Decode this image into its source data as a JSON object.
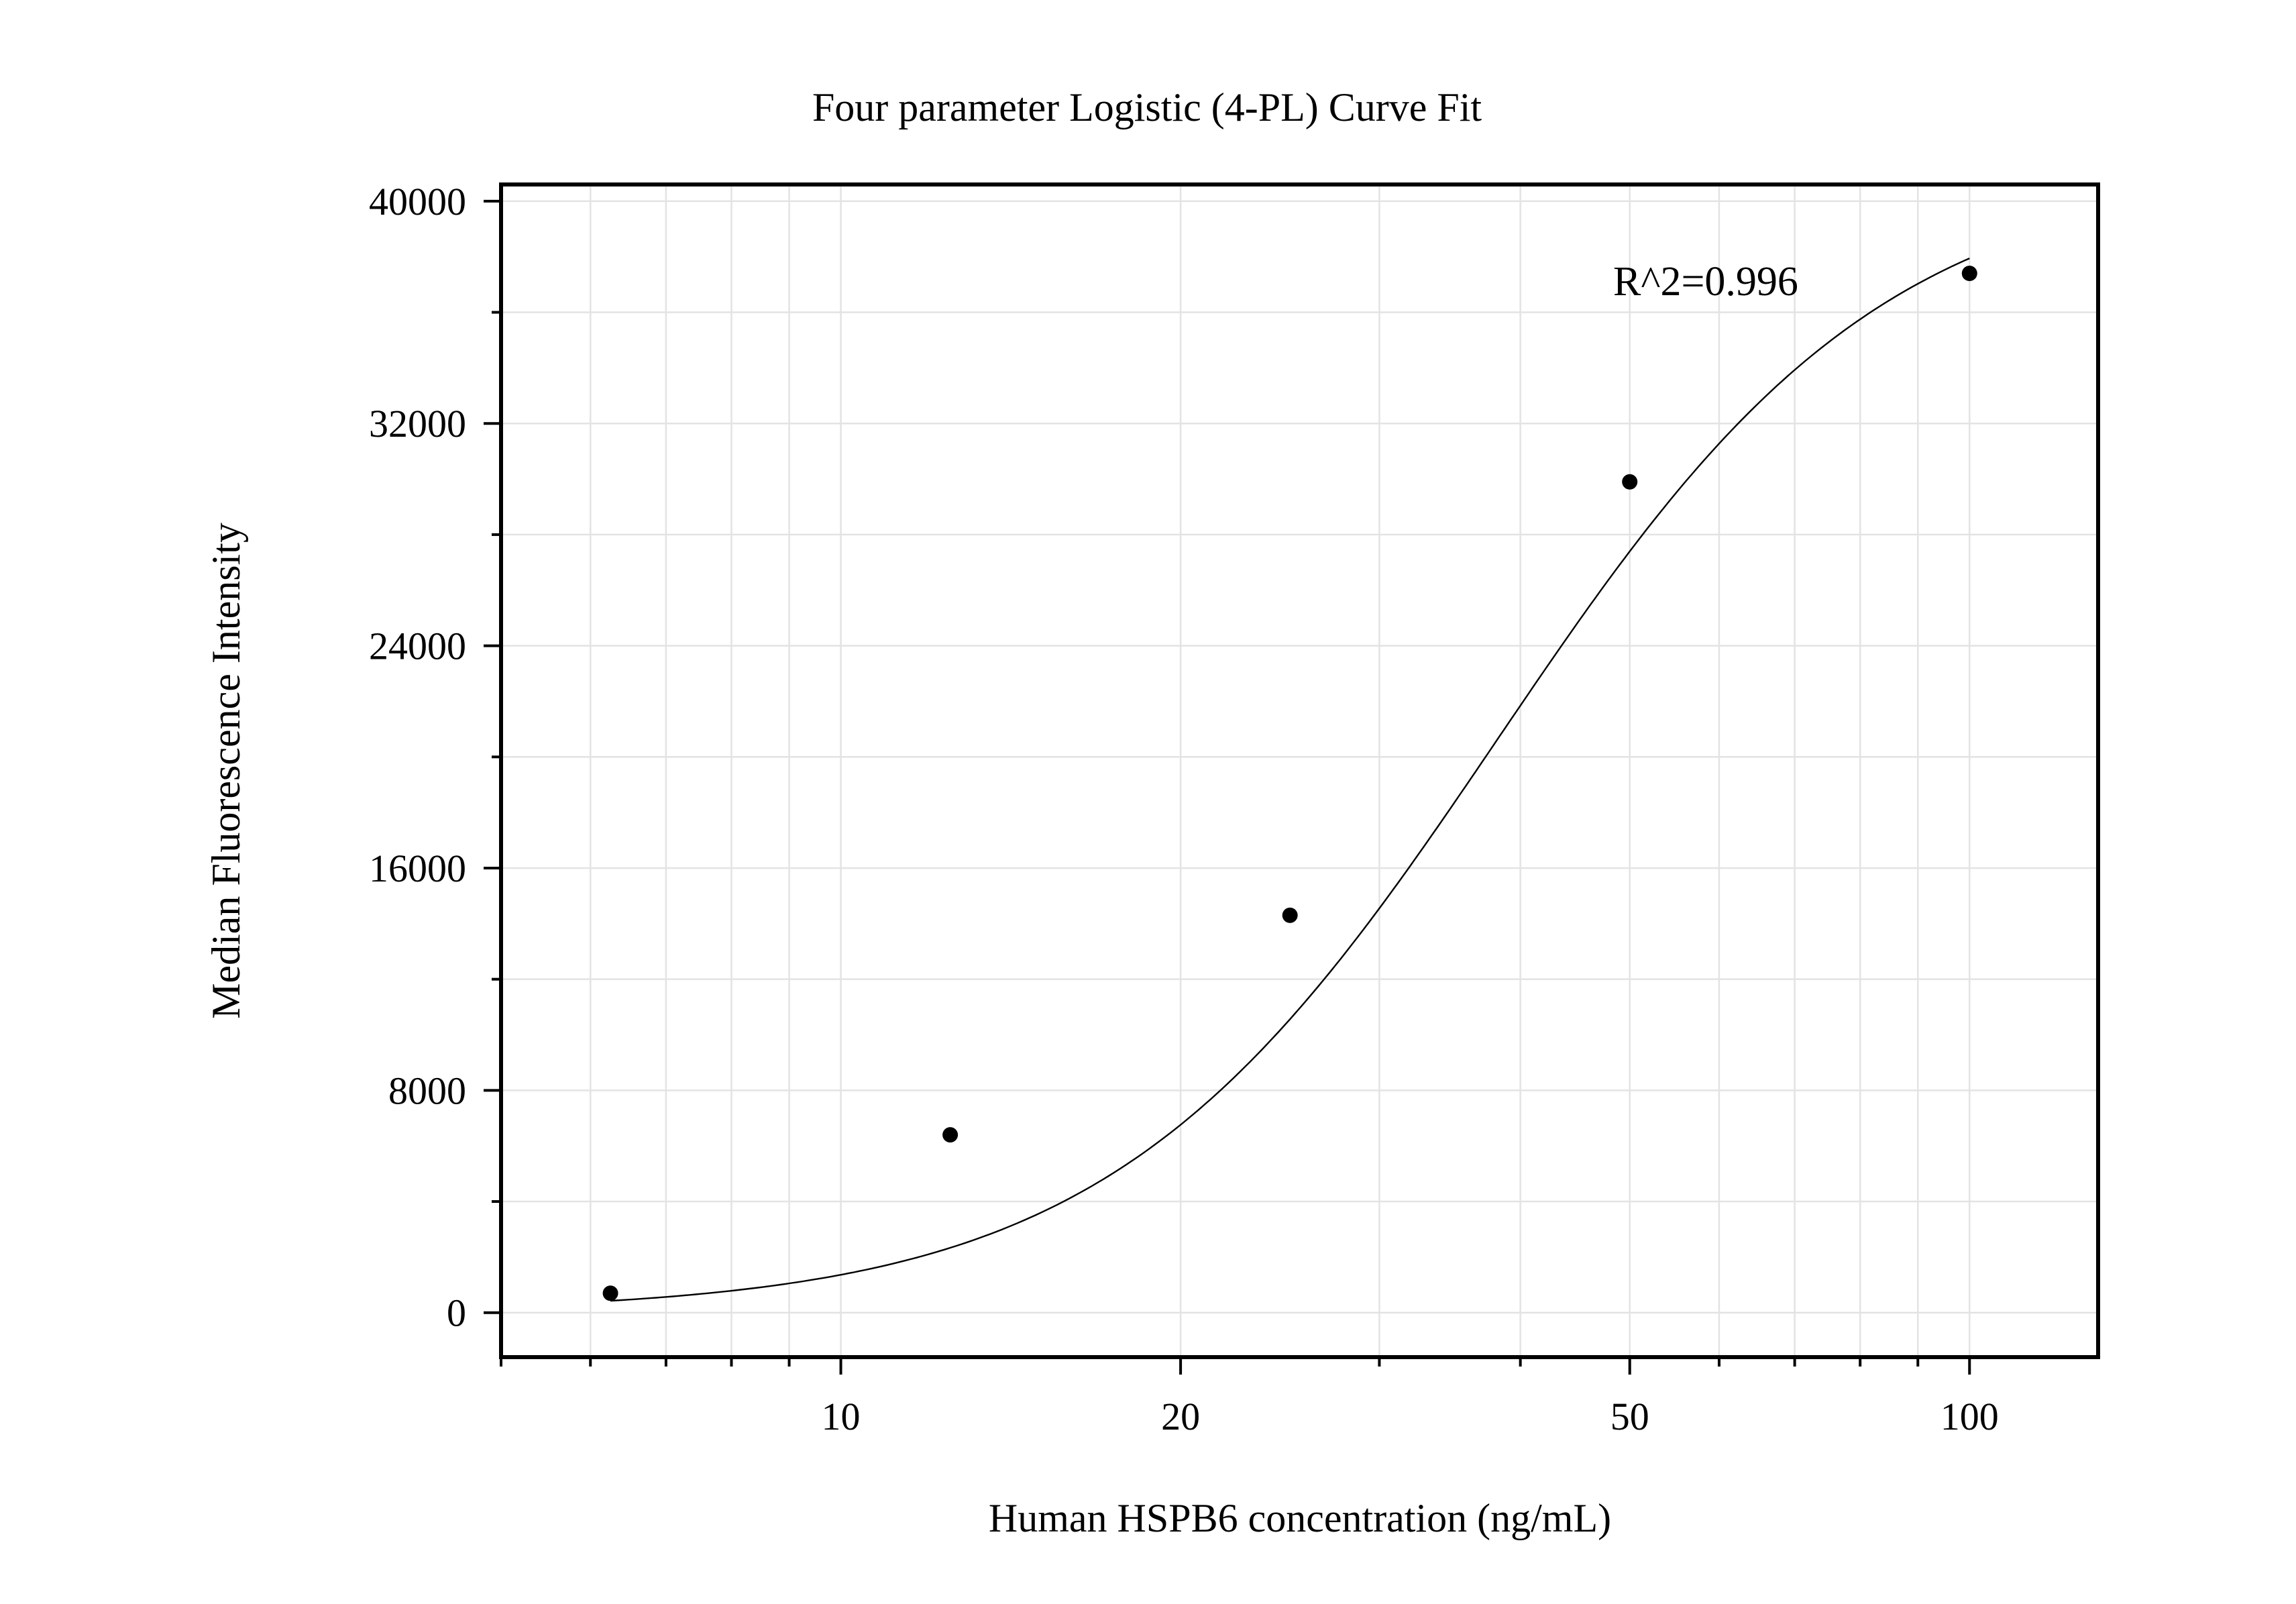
{
  "chart_data": {
    "type": "scatter",
    "title": "Four parameter Logistic (4-PL) Curve Fit",
    "xlabel": "Human HSPB6 concentration (ng/mL)",
    "ylabel": "Median Fluorescence Intensity",
    "x_scale": "log",
    "xlim": [
      5.0,
      130
    ],
    "ylim": [
      -1600,
      40600
    ],
    "x_ticks": [
      10,
      20,
      50,
      100
    ],
    "x_tick_labels": [
      "10",
      "20",
      "50",
      "100"
    ],
    "y_ticks": [
      0,
      8000,
      16000,
      24000,
      32000,
      40000
    ],
    "y_tick_labels": [
      "0",
      "8000",
      "16000",
      "24000",
      "32000",
      "40000"
    ],
    "grid": true,
    "annotation": "R^2=0.996",
    "series": [
      {
        "type": "scatter",
        "x": [
          6.25,
          12.5,
          25,
          50,
          100
        ],
        "y": [
          700,
          6400,
          14300,
          29900,
          37400
        ]
      },
      {
        "type": "line",
        "fit": "4PL",
        "x_range": [
          6.25,
          100
        ],
        "params": {
          "a": 0,
          "b": 2.52,
          "c": 38.2,
          "d": 41300
        }
      }
    ]
  }
}
